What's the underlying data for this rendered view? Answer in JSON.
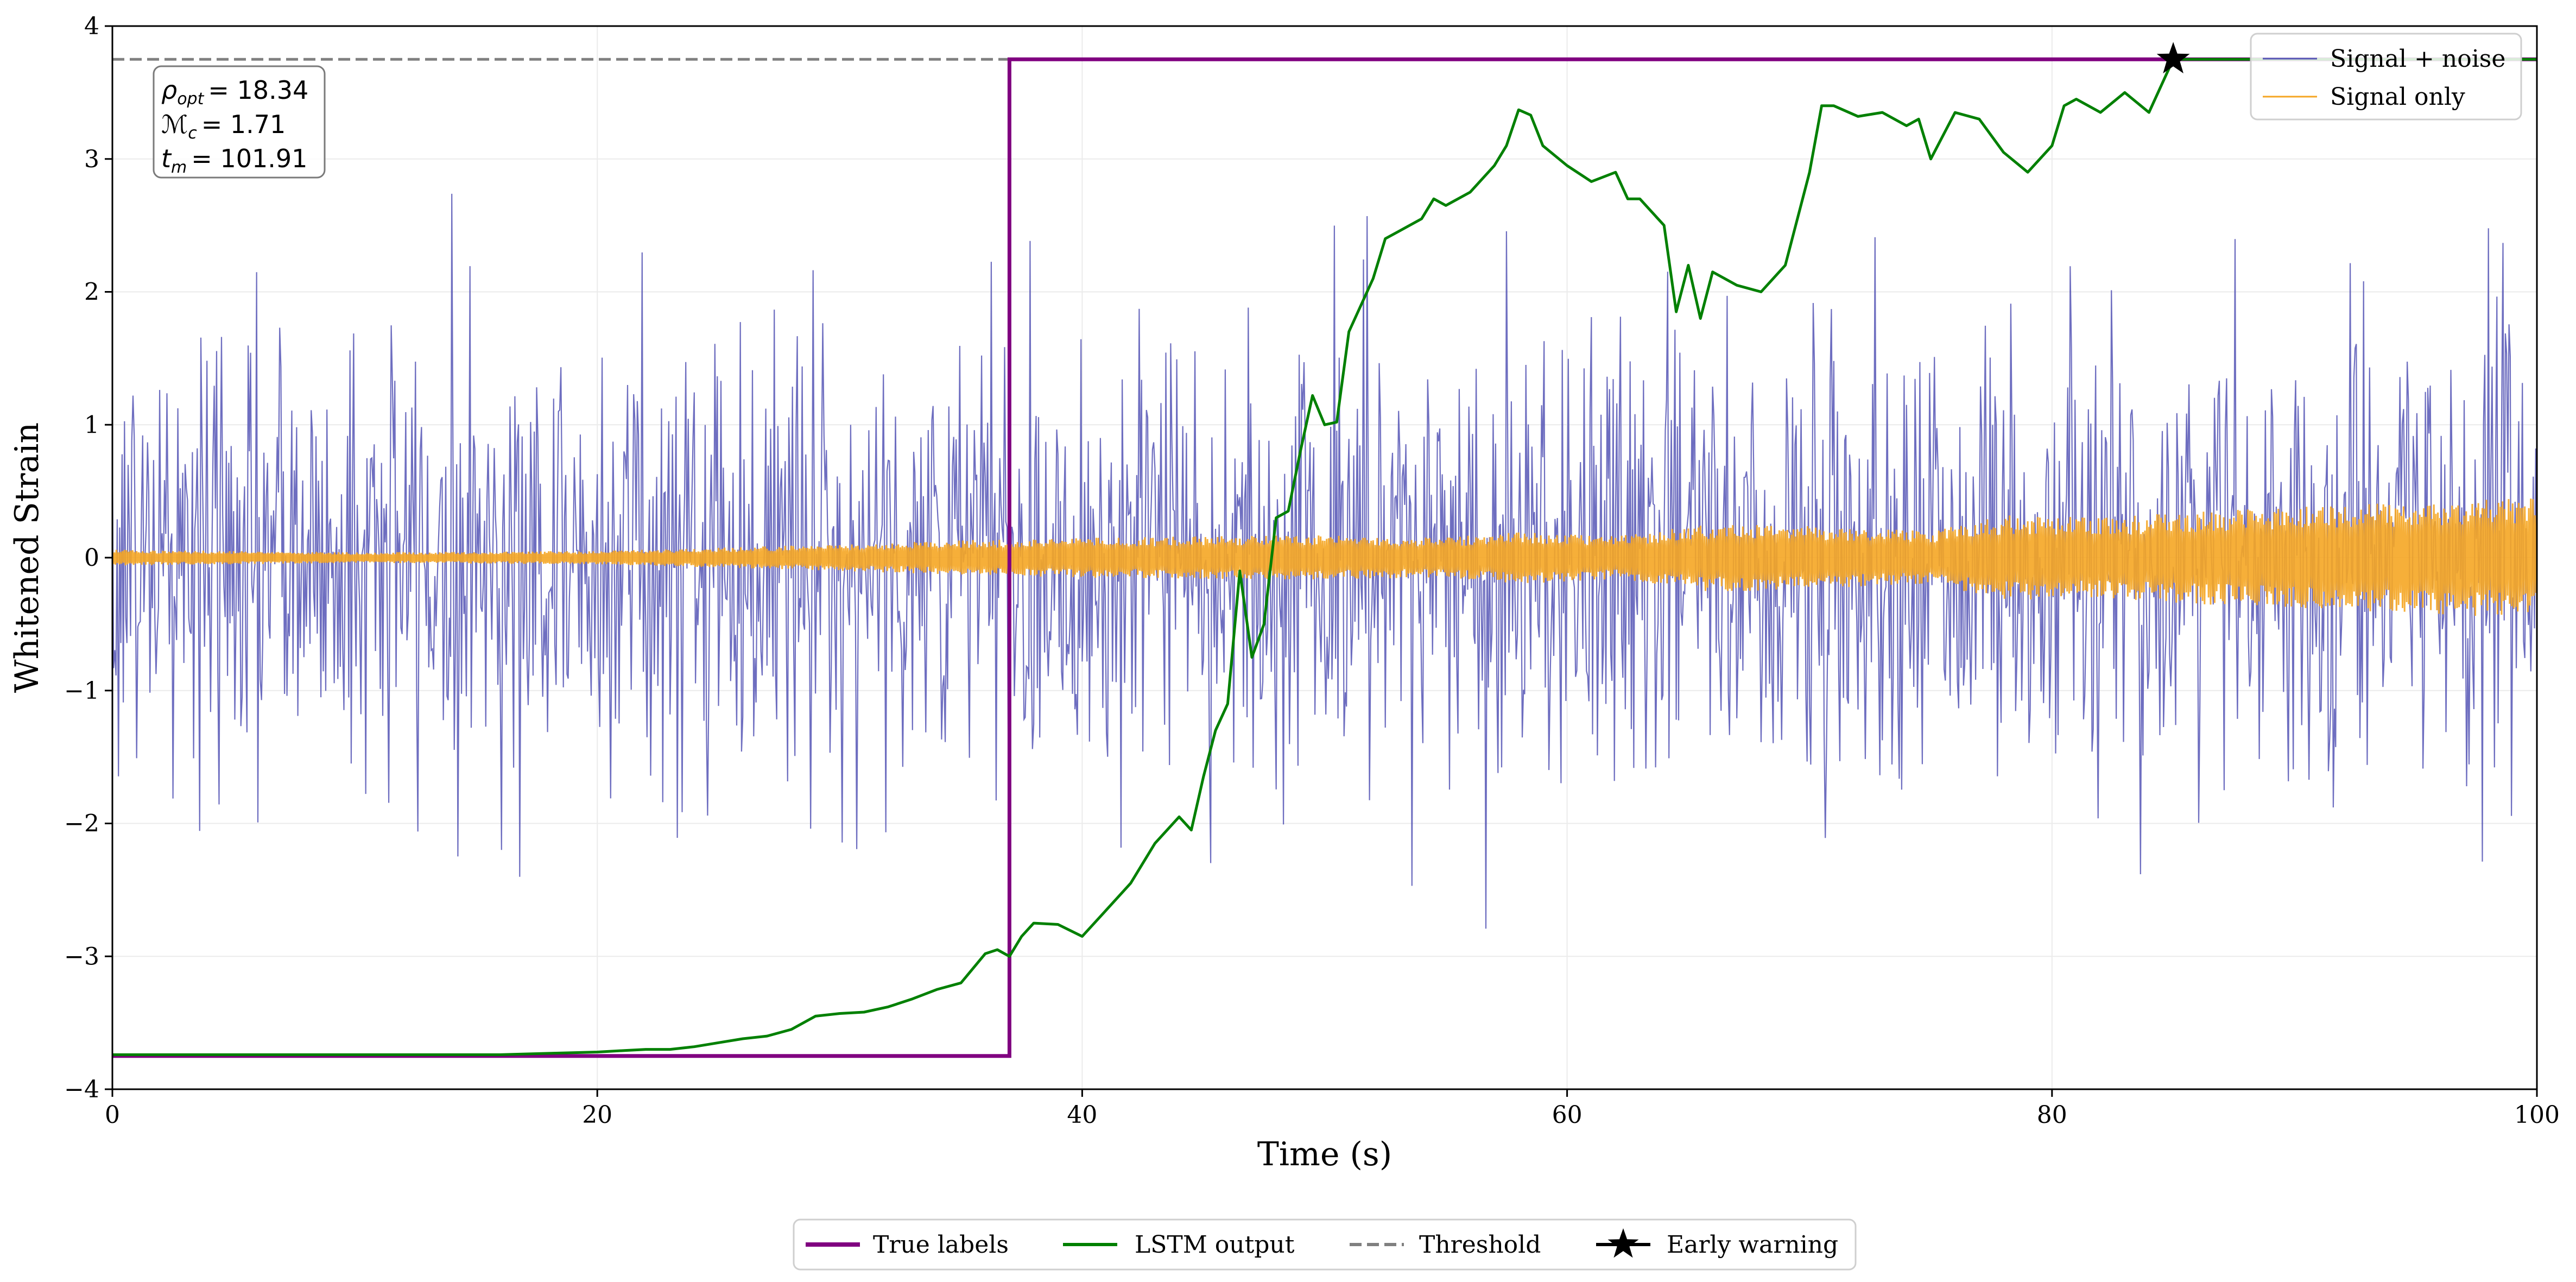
{
  "chart_data": {
    "type": "line",
    "title": "",
    "xlabel": "Time (s)",
    "ylabel": "Whitened Strain",
    "xlim": [
      0,
      100
    ],
    "ylim": [
      -4,
      4
    ],
    "x_ticks": [
      0,
      20,
      40,
      60,
      80,
      100
    ],
    "y_ticks": [
      -4,
      -3,
      -2,
      -1,
      0,
      1,
      2,
      3,
      4
    ],
    "x_tick_labels": [
      "0",
      "20",
      "40",
      "60",
      "80",
      "100"
    ],
    "y_tick_labels": [
      "−4",
      "−3",
      "−2",
      "−1",
      "0",
      "1",
      "2",
      "3",
      "4"
    ],
    "grid": true,
    "annotation": {
      "lines": [
        {
          "sym": "ρ",
          "sub": "opt",
          "value": "= 18.34"
        },
        {
          "sym": "ℳ",
          "sub": "c",
          "value": "= 1.71"
        },
        {
          "sym": "t",
          "sub": "m",
          "value": "= 101.91"
        }
      ],
      "placement": "top-left"
    },
    "legend_upper": {
      "placement": "top-right",
      "entries": [
        "Signal + noise",
        "Signal only"
      ]
    },
    "legend_lower": {
      "placement": "bottom-center",
      "entries": [
        "True labels",
        "LSTM output",
        "Threshold",
        "Early warning"
      ]
    },
    "colors": {
      "signal_noise": "#5555b5",
      "signal_only": "#f5a623",
      "true_labels": "#800080",
      "lstm": "#008000",
      "threshold": "#808080",
      "early_warning": "#000000"
    },
    "series": [
      {
        "name": "Signal + noise",
        "kind": "noise",
        "sigma": 0.85,
        "n_points": 2000,
        "range": [
          -3.35,
          3.75
        ]
      },
      {
        "name": "Signal only",
        "kind": "envelope",
        "x": [
          0,
          10,
          20,
          30,
          35,
          40,
          45,
          50,
          55,
          58,
          62,
          66,
          70,
          75,
          78,
          82,
          86,
          90,
          95,
          100
        ],
        "amplitude": [
          0.06,
          0.04,
          0.05,
          0.1,
          0.13,
          0.15,
          0.16,
          0.17,
          0.15,
          0.2,
          0.16,
          0.26,
          0.24,
          0.2,
          0.32,
          0.3,
          0.35,
          0.38,
          0.42,
          0.46
        ]
      },
      {
        "name": "True labels",
        "kind": "step",
        "x": [
          0,
          37,
          37,
          100
        ],
        "y": [
          -3.75,
          -3.75,
          3.75,
          3.75
        ]
      },
      {
        "name": "LSTM output",
        "kind": "line",
        "x": [
          0,
          10,
          16,
          18,
          20,
          21,
          22,
          23,
          24,
          25,
          26,
          27,
          28,
          29,
          30,
          31,
          32,
          33,
          34,
          35,
          36,
          36.5,
          37,
          37.5,
          38,
          39,
          40,
          41,
          42,
          43,
          44,
          44.5,
          45,
          45.5,
          46,
          46.5,
          47,
          47.5,
          48,
          48.5,
          49,
          49.5,
          50,
          50.5,
          51,
          52,
          52.5,
          53,
          54,
          54.5,
          55,
          56,
          57,
          57.5,
          58,
          58.5,
          59,
          60,
          61,
          62,
          62.5,
          63,
          64,
          64.5,
          65,
          65.5,
          66,
          67,
          68,
          69,
          70,
          70.5,
          71,
          72,
          73,
          74,
          74.5,
          75,
          76,
          77,
          78,
          79,
          80,
          80.5,
          81,
          82,
          83,
          84,
          85,
          86,
          100
        ],
        "y": [
          -3.74,
          -3.74,
          -3.74,
          -3.73,
          -3.72,
          -3.71,
          -3.7,
          -3.7,
          -3.68,
          -3.65,
          -3.62,
          -3.6,
          -3.55,
          -3.45,
          -3.43,
          -3.42,
          -3.38,
          -3.32,
          -3.25,
          -3.2,
          -2.98,
          -2.95,
          -3.0,
          -2.85,
          -2.75,
          -2.76,
          -2.85,
          -2.65,
          -2.45,
          -2.15,
          -1.95,
          -2.05,
          -1.65,
          -1.3,
          -1.1,
          -0.1,
          -0.75,
          -0.5,
          0.3,
          0.35,
          0.8,
          1.22,
          1.0,
          1.02,
          1.7,
          2.1,
          2.4,
          2.45,
          2.55,
          2.7,
          2.65,
          2.75,
          2.95,
          3.1,
          3.37,
          3.33,
          3.1,
          2.95,
          2.83,
          2.9,
          2.7,
          2.7,
          2.5,
          1.85,
          2.2,
          1.8,
          2.15,
          2.05,
          2.0,
          2.2,
          2.9,
          3.4,
          3.4,
          3.32,
          3.35,
          3.25,
          3.3,
          3.0,
          3.35,
          3.3,
          3.05,
          2.9,
          3.1,
          3.4,
          3.45,
          3.35,
          3.5,
          3.35,
          3.75,
          3.75,
          3.75
        ]
      },
      {
        "name": "Threshold",
        "kind": "hline",
        "y": 3.75
      },
      {
        "name": "Early warning",
        "kind": "marker",
        "x": 85,
        "y": 3.75
      }
    ]
  }
}
